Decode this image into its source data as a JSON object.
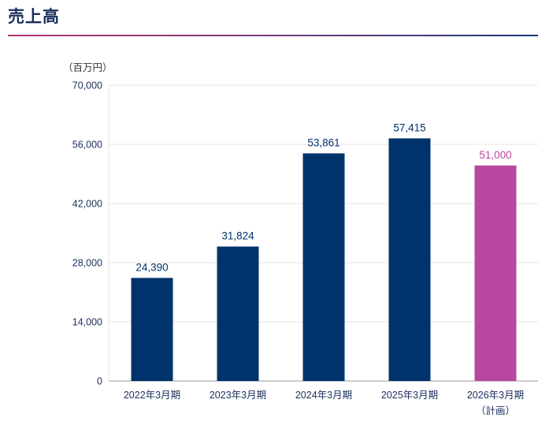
{
  "header": {
    "title": "売上高"
  },
  "colors": {
    "actual": "#00336b",
    "plan": "#b8479f",
    "grid": "#e6e6e6",
    "axis": "#9a9a9a",
    "title": "#1b2f5d"
  },
  "chart_data": {
    "type": "bar",
    "title": "売上高",
    "unit": "（百万円）",
    "xlabel": "",
    "ylabel": "",
    "ylim": [
      0,
      70000
    ],
    "yticks": [
      0,
      14000,
      28000,
      42000,
      56000,
      70000
    ],
    "ytick_labels": [
      "0",
      "14,000",
      "28,000",
      "42,000",
      "56,000",
      "70,000"
    ],
    "grid": true,
    "categories": [
      "2022年3月期",
      "2023年3月期",
      "2024年3月期",
      "2025年3月期",
      "2026年3月期"
    ],
    "category_notes": [
      "",
      "",
      "",
      "",
      "（計画）"
    ],
    "values": [
      24390,
      31824,
      53861,
      57415,
      51000
    ],
    "value_labels": [
      "24,390",
      "31,824",
      "53,861",
      "57,415",
      "51,000"
    ],
    "kinds": [
      "actual",
      "actual",
      "actual",
      "actual",
      "plan"
    ]
  }
}
